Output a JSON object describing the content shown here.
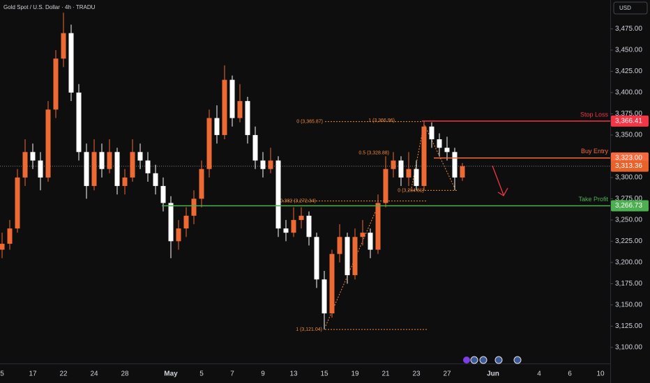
{
  "chart_data": {
    "type": "candlestick",
    "title": "Gold Spot / U.S. Dollar · 4h · TRADU",
    "currency": "USD",
    "up_color": "#ee6a34",
    "down_color": "#ffffff",
    "grid": false,
    "ylim": [
      3081,
      3509
    ],
    "yticks": [
      {
        "value": 3100,
        "label": "3,100.00"
      },
      {
        "value": 3125,
        "label": "3,125.00"
      },
      {
        "value": 3150,
        "label": "3,150.00"
      },
      {
        "value": 3175,
        "label": "3,175.00"
      },
      {
        "value": 3200,
        "label": "3,200.00"
      },
      {
        "value": 3225,
        "label": "3,225.00"
      },
      {
        "value": 3250,
        "label": "3,250.00"
      },
      {
        "value": 3275,
        "label": "3,275.00"
      },
      {
        "value": 3300,
        "label": "3,300.00"
      },
      {
        "value": 3325,
        "label": "3,325.00"
      },
      {
        "value": 3350,
        "label": "3,350.00"
      },
      {
        "value": 3375,
        "label": "3,375.00"
      },
      {
        "value": 3400,
        "label": "3,400.00"
      },
      {
        "value": 3425,
        "label": "3,425.00"
      },
      {
        "value": 3450,
        "label": "3,450.00"
      },
      {
        "value": 3475,
        "label": "3,475.00"
      }
    ],
    "categories": [
      "5",
      null,
      null,
      null,
      "17",
      null,
      null,
      null,
      "22",
      null,
      null,
      null,
      "24",
      null,
      null,
      null,
      "28",
      null,
      null,
      null,
      null,
      null,
      "May",
      null,
      null,
      null,
      "5",
      null,
      null,
      null,
      "7",
      null,
      null,
      null,
      "9",
      null,
      null,
      null,
      "13",
      null,
      null,
      null,
      "15",
      null,
      null,
      null,
      "19",
      null,
      null,
      null,
      "21",
      null,
      null,
      null,
      "23",
      null,
      null,
      null,
      "27",
      null,
      null,
      null,
      null,
      null,
      "Jun",
      null,
      null,
      null,
      null,
      null,
      "4",
      null,
      null,
      null,
      "6",
      null,
      null,
      null,
      "10",
      null
    ],
    "open": [
      3215,
      3222,
      3240,
      3300,
      3330,
      3320,
      3300,
      3380,
      3440,
      3470,
      3400,
      3330,
      3290,
      3330,
      3310,
      3330,
      3290,
      3300,
      3330,
      3320,
      3305,
      3290,
      3270,
      3225,
      3240,
      3255,
      3275,
      3310,
      3370,
      3350,
      3415,
      3370,
      3390,
      3350,
      3320,
      3310,
      3320,
      3240,
      3235,
      3250,
      3255,
      3230,
      3180,
      3140,
      3210,
      3230,
      3185,
      3230,
      3235,
      3215,
      3270,
      3310,
      3320,
      3300,
      3310,
      3290,
      3360,
      3345,
      3335,
      3330,
      3300,
      null,
      null,
      null,
      null,
      null,
      null,
      null,
      null,
      null,
      null,
      null,
      null,
      null,
      null,
      null,
      null,
      null,
      null,
      null
    ],
    "high": [
      3235,
      3250,
      3310,
      3345,
      3340,
      3330,
      3390,
      3450,
      3494,
      3480,
      3410,
      3340,
      3345,
      3340,
      3345,
      3335,
      3310,
      3345,
      3340,
      3330,
      3315,
      3300,
      3278,
      3250,
      3265,
      3285,
      3320,
      3380,
      3385,
      3432,
      3420,
      3410,
      3395,
      3360,
      3330,
      3335,
      3325,
      3250,
      3265,
      3265,
      3260,
      3235,
      3190,
      3215,
      3245,
      3235,
      3240,
      3250,
      3240,
      3280,
      3325,
      3330,
      3325,
      3330,
      3320,
      3366,
      3365,
      3352,
      3348,
      3335,
      3317,
      null,
      null,
      null,
      null,
      null,
      null,
      null,
      null,
      null,
      null,
      null,
      null,
      null,
      null,
      null,
      null,
      null,
      null,
      null
    ],
    "low": [
      3205,
      3215,
      3235,
      3290,
      3310,
      3285,
      3295,
      3370,
      3430,
      3390,
      3320,
      3275,
      3285,
      3300,
      3305,
      3280,
      3280,
      3295,
      3310,
      3295,
      3280,
      3260,
      3205,
      3215,
      3230,
      3245,
      3265,
      3300,
      3340,
      3345,
      3360,
      3365,
      3340,
      3310,
      3300,
      3305,
      3230,
      3225,
      3230,
      3240,
      3220,
      3170,
      3121,
      3135,
      3200,
      3175,
      3180,
      3220,
      3205,
      3210,
      3265,
      3300,
      3290,
      3290,
      3285,
      3285,
      3335,
      3325,
      3320,
      3285,
      3296,
      null,
      null,
      null,
      null,
      null,
      null,
      null,
      null,
      null,
      null,
      null,
      null,
      null,
      null,
      null,
      null,
      null,
      null,
      null
    ],
    "close": [
      3222,
      3240,
      3300,
      3330,
      3320,
      3300,
      3380,
      3440,
      3470,
      3400,
      3330,
      3290,
      3330,
      3310,
      3330,
      3290,
      3300,
      3330,
      3320,
      3305,
      3290,
      3270,
      3225,
      3240,
      3255,
      3275,
      3310,
      3370,
      3350,
      3415,
      3370,
      3390,
      3350,
      3320,
      3310,
      3320,
      3240,
      3235,
      3250,
      3255,
      3230,
      3180,
      3140,
      3210,
      3230,
      3185,
      3230,
      3235,
      3215,
      3270,
      3310,
      3320,
      3300,
      3310,
      3290,
      3360,
      3345,
      3335,
      3330,
      3300,
      3313.36,
      null,
      null,
      null,
      null,
      null,
      null,
      null,
      null,
      null,
      null,
      null,
      null,
      null,
      null,
      null,
      null,
      null,
      null,
      null
    ],
    "levels": [
      {
        "name": "Stop Loss",
        "value": 3366.41,
        "label": "3,366.41",
        "color": "#f23645"
      },
      {
        "name": "Buy Entry",
        "value": 3323.0,
        "label": "3,323.00",
        "color": "#f7693c"
      },
      {
        "name": "Take Profit",
        "value": 3266.73,
        "label": "3,266.73",
        "color": "#4caf50"
      }
    ],
    "current_price": {
      "value": 3313.36,
      "label": "3,313.36",
      "color": "#e8622a"
    },
    "fib_color": "#f08a3c",
    "fib_levels": [
      {
        "value": 3365.87,
        "label": "0 (3,365.87)"
      },
      {
        "value": 3366.96,
        "label": "1 (3,366.96)"
      },
      {
        "value": 3328.88,
        "label": "0.5 (3,328.88)"
      },
      {
        "value": 3284.81,
        "label": "0 (3,284.81)"
      },
      {
        "value": 3272.34,
        "label": "0.382 (3,272.34)"
      },
      {
        "value": 3121.04,
        "label": "1 (3,121.04)"
      }
    ]
  }
}
